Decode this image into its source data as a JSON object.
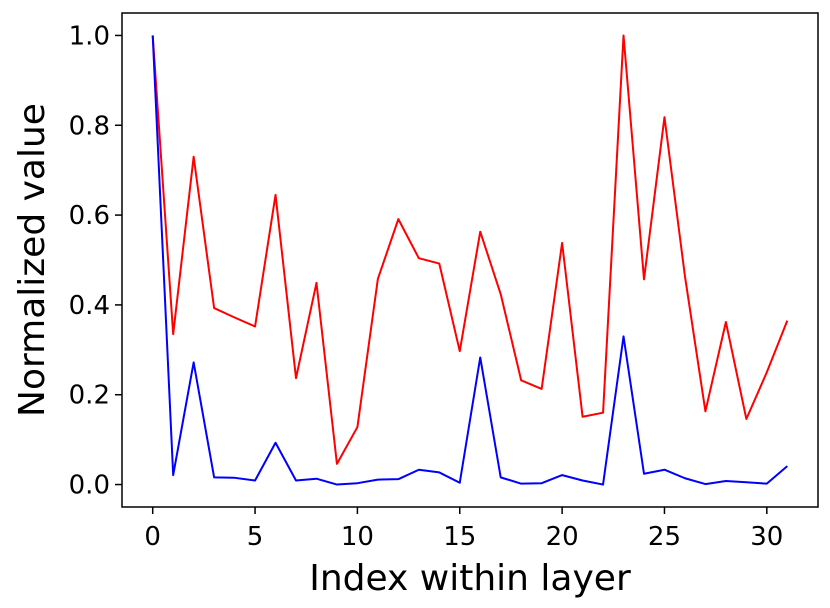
{
  "chart_data": {
    "type": "line",
    "title": "",
    "xlabel": "Index within layer",
    "ylabel": "Normalized value",
    "xlim": [
      -1.5,
      32.5
    ],
    "ylim": [
      -0.05,
      1.05
    ],
    "xticks": [
      0,
      5,
      10,
      15,
      20,
      25,
      30
    ],
    "yticks": [
      0.0,
      0.2,
      0.4,
      0.6,
      0.8,
      1.0
    ],
    "xtick_labels": [
      "0",
      "5",
      "10",
      "15",
      "20",
      "25",
      "30"
    ],
    "ytick_labels": [
      "0.0",
      "0.2",
      "0.4",
      "0.6",
      "0.8",
      "1.0"
    ],
    "grid": false,
    "legend": "none",
    "x": [
      0,
      1,
      2,
      3,
      4,
      5,
      6,
      7,
      8,
      9,
      10,
      11,
      12,
      13,
      14,
      15,
      16,
      17,
      18,
      19,
      20,
      21,
      22,
      23,
      24,
      25,
      26,
      27,
      28,
      29,
      30,
      31
    ],
    "series": [
      {
        "color": "#ff0000",
        "values": [
          1.0,
          0.335,
          0.73,
          0.393,
          0.372,
          0.352,
          0.645,
          0.237,
          0.449,
          0.046,
          0.128,
          0.458,
          0.591,
          0.504,
          0.492,
          0.297,
          0.563,
          0.424,
          0.232,
          0.213,
          0.538,
          0.151,
          0.16,
          1.0,
          0.457,
          0.818,
          0.464,
          0.163,
          0.362,
          0.146,
          0.25,
          0.365
        ]
      },
      {
        "color": "#0000ff",
        "values": [
          1.0,
          0.021,
          0.272,
          0.016,
          0.015,
          0.009,
          0.093,
          0.009,
          0.013,
          0.0,
          0.003,
          0.011,
          0.012,
          0.033,
          0.027,
          0.004,
          0.283,
          0.016,
          0.002,
          0.003,
          0.021,
          0.009,
          0.0,
          0.33,
          0.024,
          0.033,
          0.014,
          0.001,
          0.008,
          0.005,
          0.002,
          0.041
        ]
      }
    ]
  }
}
